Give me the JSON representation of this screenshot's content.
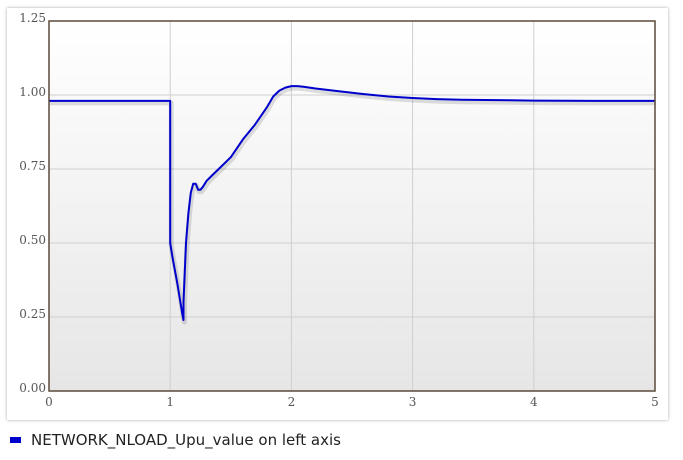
{
  "chart_data": {
    "type": "line",
    "title": "",
    "xlabel": "",
    "ylabel": "",
    "xlim": [
      0,
      5
    ],
    "ylim": [
      0,
      1.25
    ],
    "x_ticks": [
      "0",
      "1",
      "2",
      "3",
      "4",
      "5"
    ],
    "y_ticks": [
      "0.00",
      "0.25",
      "0.50",
      "0.75",
      "1.00",
      "1.25"
    ],
    "grid": true,
    "legend_position": "bottom-left",
    "series": [
      {
        "name": "NETWORK_NLOAD_Upu_value on left axis",
        "color": "#0000cc",
        "x": [
          0,
          1.0,
          1.0,
          1.0,
          1.02,
          1.06,
          1.1,
          1.11,
          1.11,
          1.13,
          1.15,
          1.17,
          1.19,
          1.21,
          1.23,
          1.25,
          1.27,
          1.3,
          1.35,
          1.4,
          1.5,
          1.6,
          1.7,
          1.8,
          1.85,
          1.9,
          1.95,
          2.0,
          2.05,
          2.1,
          2.2,
          2.4,
          2.6,
          2.8,
          3.0,
          3.2,
          3.4,
          3.6,
          3.8,
          4.0,
          4.5,
          5.0
        ],
        "y": [
          0.98,
          0.98,
          0.53,
          0.5,
          0.45,
          0.36,
          0.26,
          0.24,
          0.3,
          0.5,
          0.6,
          0.67,
          0.7,
          0.7,
          0.68,
          0.68,
          0.69,
          0.71,
          0.73,
          0.75,
          0.79,
          0.85,
          0.9,
          0.96,
          0.995,
          1.015,
          1.025,
          1.03,
          1.03,
          1.028,
          1.022,
          1.012,
          1.003,
          0.995,
          0.99,
          0.986,
          0.984,
          0.983,
          0.982,
          0.981,
          0.98,
          0.98
        ]
      }
    ]
  }
}
